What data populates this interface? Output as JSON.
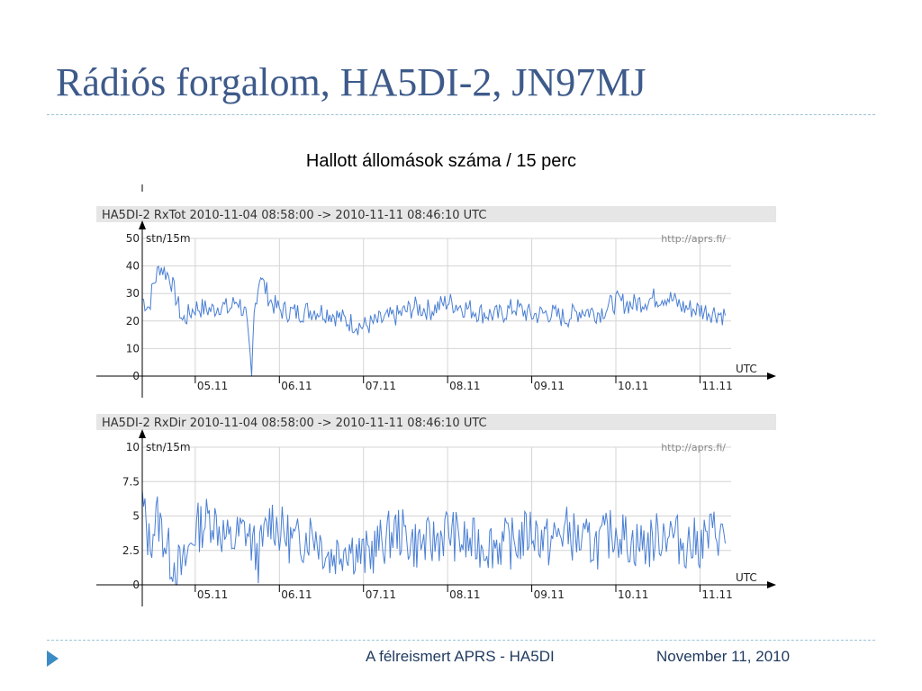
{
  "slide": {
    "title": "Rádiós forgalom, HA5DI-2, JN97MJ",
    "subtitle": "Hallott állomások száma / 15 perc",
    "footer_center": "A félreismert APRS - HA5DI",
    "footer_right": "November 11, 2010"
  },
  "colors": {
    "title": "#3d5a8a",
    "series": "#4a7fd4",
    "header_band": "#e6e6e6",
    "grid": "#d4d4d4",
    "accent": "#3b8cc4"
  },
  "chart_data": [
    {
      "type": "line",
      "title": "HA5DI-2 RxTot   2010-11-04 08:58:00 -> 2010-11-11 08:46:10 UTC",
      "ylabel": "stn/15m",
      "xlabel": "UTC",
      "source_text": "http://aprs.fi/",
      "x_ticks": [
        "05.11",
        "06.11",
        "07.11",
        "08.11",
        "09.11",
        "10.11",
        "11.11"
      ],
      "y_ticks": [
        "0",
        "10",
        "20",
        "30",
        "40",
        "50"
      ],
      "ylim": [
        0,
        50
      ],
      "xlim": [
        4.37,
        11.37
      ],
      "grid": true,
      "series": [
        {
          "x": [
            4.37,
            4.45,
            4.5,
            4.58,
            4.7,
            4.85,
            5.0,
            5.2,
            5.3,
            5.4,
            5.5,
            5.6,
            5.67,
            5.7,
            5.73,
            5.78,
            5.8,
            5.9,
            6.0,
            6.2,
            6.4,
            6.6,
            6.8,
            7.0,
            7.2,
            7.4,
            7.6,
            7.8,
            8.0,
            8.2,
            8.4,
            8.6,
            8.8,
            9.0,
            9.2,
            9.4,
            9.6,
            9.8,
            10.0,
            10.2,
            10.4,
            10.6,
            10.8,
            11.0,
            11.2,
            11.3
          ],
          "y": [
            28,
            25,
            33,
            40,
            36,
            20,
            25,
            24,
            26,
            24,
            28,
            22,
            0,
            22,
            30,
            38,
            34,
            27,
            24,
            23,
            24,
            23,
            20,
            18,
            20,
            22,
            25,
            24,
            27,
            25,
            23,
            22,
            25,
            22,
            23,
            21,
            24,
            23,
            27,
            26,
            28,
            29,
            25,
            24,
            23,
            22
          ]
        }
      ]
    },
    {
      "type": "line",
      "title": "HA5DI-2 RxDir   2010-11-04 08:58:00 -> 2010-11-11 08:46:10 UTC",
      "ylabel": "stn/15m",
      "xlabel": "UTC",
      "source_text": "http://aprs.fi/",
      "x_ticks": [
        "05.11",
        "06.11",
        "07.11",
        "08.11",
        "09.11",
        "10.11",
        "11.11"
      ],
      "y_ticks": [
        "0",
        "2.5",
        "5",
        "7.5",
        "10"
      ],
      "ylim": [
        0,
        10
      ],
      "xlim": [
        4.37,
        11.37
      ],
      "grid": true,
      "series": [
        {
          "x": [
            4.37,
            4.45,
            4.55,
            4.7,
            4.85,
            5.0,
            5.2,
            5.4,
            5.6,
            5.75,
            5.9,
            6.0,
            6.2,
            6.4,
            6.6,
            6.8,
            7.0,
            7.2,
            7.4,
            7.6,
            7.8,
            8.0,
            8.2,
            8.4,
            8.6,
            8.8,
            9.0,
            9.2,
            9.4,
            9.6,
            9.8,
            10.0,
            10.2,
            10.4,
            10.6,
            10.8,
            11.0,
            11.2,
            11.3
          ],
          "y": [
            6,
            3,
            5,
            2,
            1,
            4,
            5,
            3,
            4,
            2,
            5,
            4,
            3,
            4,
            2,
            3,
            2,
            3,
            4,
            3,
            3,
            4,
            3,
            3,
            3,
            3,
            4,
            3,
            4,
            3,
            3,
            4,
            3,
            3,
            4,
            3,
            3,
            4,
            3
          ]
        }
      ]
    }
  ]
}
